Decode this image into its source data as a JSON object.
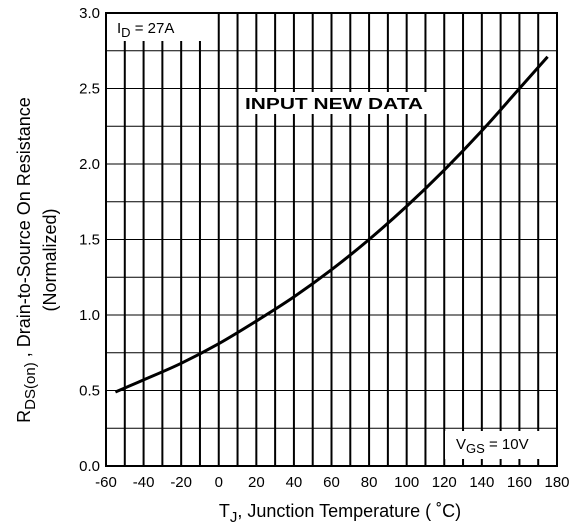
{
  "chart_data": {
    "type": "line",
    "xlabel": {
      "main": "T",
      "sub": "J",
      "rest": ", Junction Temperature ( ˚C)"
    },
    "ylabel": {
      "main": "R",
      "sub": "DS(on)",
      "rest": " ,  Drain-to-Source On Resistance",
      "line2": "(Normalized)"
    },
    "xlim": [
      -60,
      180
    ],
    "ylim": [
      0.0,
      3.0
    ],
    "x_ticks": [
      "-60",
      "-40",
      "-20",
      "0",
      "20",
      "40",
      "60",
      "80",
      "100",
      "120",
      "140",
      "160",
      "180"
    ],
    "y_ticks": [
      "0.0",
      "0.5",
      "1.0",
      "1.5",
      "2.0",
      "2.5",
      "3.0"
    ],
    "grid": true,
    "annotations": {
      "id": {
        "main": "I",
        "sub": "D",
        "rest": " = 27A"
      },
      "vgs": {
        "main": "V",
        "sub": "GS",
        "rest": " = 10V"
      },
      "watermark": "INPUT NEW DATA"
    },
    "series": [
      {
        "x": [
          -55,
          -40,
          -20,
          0,
          20,
          40,
          60,
          80,
          100,
          120,
          140,
          160,
          175
        ],
        "values": [
          0.49,
          0.57,
          0.68,
          0.81,
          0.96,
          1.12,
          1.3,
          1.5,
          1.72,
          1.96,
          2.22,
          2.5,
          2.71
        ]
      }
    ]
  }
}
